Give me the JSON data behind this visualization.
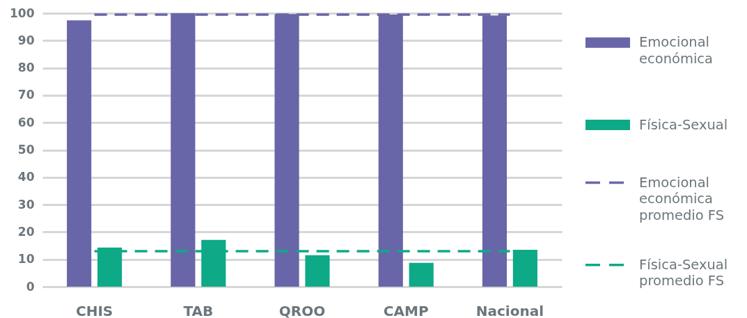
{
  "chart_data": {
    "type": "bar",
    "categories": [
      "CHIS",
      "TAB",
      "QROO",
      "CAMP",
      "Nacional"
    ],
    "series": [
      {
        "name": "Emocional económica",
        "color": "#6866a8",
        "values": [
          97.4,
          100,
          99.7,
          99.5,
          99.2
        ]
      },
      {
        "name": "Física-Sexual",
        "color": "#0ea987",
        "values": [
          14.3,
          17.1,
          11.5,
          8.7,
          13.5
        ]
      },
      {
        "name": "Emocional económica promedio FS",
        "type": "line",
        "line_style": "dashed",
        "color": "#6866a8",
        "values": [
          99.5,
          99.5,
          99.5,
          99.5,
          99.5
        ]
      },
      {
        "name": "Física-Sexual promedio FS",
        "type": "line",
        "line_style": "dashed",
        "color": "#0ea987",
        "values": [
          13,
          13,
          13,
          13,
          13
        ]
      }
    ],
    "ylim": [
      0,
      100
    ],
    "yticks": [
      0,
      10,
      20,
      30,
      40,
      50,
      60,
      70,
      80,
      90,
      100
    ],
    "grid": "y",
    "legend": "right"
  }
}
